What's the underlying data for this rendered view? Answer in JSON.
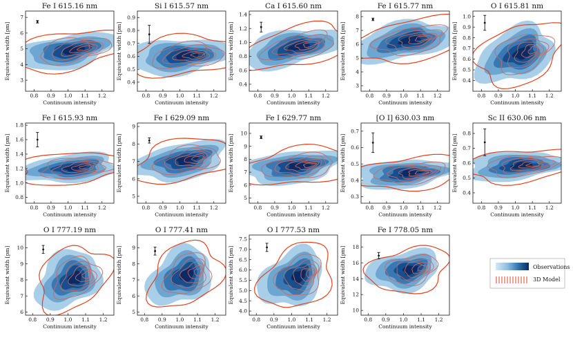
{
  "figure": {
    "legend": {
      "observations_label": "Observations",
      "model_label": "3D Model",
      "obs_gradient": [
        "#d6e8f6",
        "#0b2a63"
      ],
      "model_color": "#e8502a"
    },
    "colors": {
      "obs_levels": [
        "#a9cfe8",
        "#6ea6d2",
        "#3978b3",
        "#174e8e",
        "#0b2a63"
      ],
      "model_color": "#e0421e",
      "model_inner": "#c86a60"
    }
  },
  "chart_data": [
    {
      "type": "contour",
      "title": "Fe I 615.16 nm",
      "xlabel": "Continuum intensity",
      "ylabel": "Equivalent width [pm]",
      "xlim": [
        0.75,
        1.27
      ],
      "ylim": [
        2.3,
        7.4
      ],
      "xticks": [
        "0.8",
        "0.9",
        "1.0",
        "1.1",
        "1.2"
      ],
      "yticks": [
        "3",
        "4",
        "5",
        "6",
        "7"
      ],
      "center": [
        0.99,
        4.85
      ],
      "spread": [
        0.13,
        0.55
      ],
      "slope": 0.6,
      "error_bar": {
        "x": 0.82,
        "y": 6.72,
        "err": 0.08
      }
    },
    {
      "type": "contour",
      "title": "Si I 615.57 nm",
      "xlabel": "Continuum intensity",
      "ylabel": "Equivalent width [pm]",
      "xlim": [
        0.75,
        1.27
      ],
      "ylim": [
        0.33,
        0.95
      ],
      "xticks": [
        "0.8",
        "0.9",
        "1.0",
        "1.1",
        "1.2"
      ],
      "yticks": [
        "0.4",
        "0.5",
        "0.6",
        "0.7",
        "0.8",
        "0.9"
      ],
      "center": [
        1.0,
        0.6
      ],
      "spread": [
        0.13,
        0.07
      ],
      "slope": 0.3,
      "error_bar": {
        "x": 0.82,
        "y": 0.77,
        "err": 0.07
      }
    },
    {
      "type": "contour",
      "title": "Ca I 615.60 nm",
      "xlabel": "Continuum intensity",
      "ylabel": "Equivalent width [pm]",
      "xlim": [
        0.75,
        1.27
      ],
      "ylim": [
        0.3,
        1.45
      ],
      "xticks": [
        "0.8",
        "0.9",
        "1.0",
        "1.1",
        "1.2"
      ],
      "yticks": [
        "0.4",
        "0.6",
        "0.8",
        "1.0",
        "1.2",
        "1.4"
      ],
      "center": [
        1.0,
        0.92
      ],
      "spread": [
        0.13,
        0.13
      ],
      "slope": 0.7,
      "error_bar": {
        "x": 0.82,
        "y": 1.22,
        "err": 0.07
      }
    },
    {
      "type": "contour",
      "title": "Fe I 615.77 nm",
      "xlabel": "Continuum intensity",
      "ylabel": "Equivalent width [pm]",
      "xlim": [
        0.75,
        1.27
      ],
      "ylim": [
        2.6,
        8.4
      ],
      "xticks": [
        "0.8",
        "0.9",
        "1.0",
        "1.1",
        "1.2"
      ],
      "yticks": [
        "3",
        "4",
        "5",
        "6",
        "7",
        "8"
      ],
      "center": [
        1.0,
        6.2
      ],
      "spread": [
        0.13,
        0.7
      ],
      "slope": 0.6,
      "error_bar": {
        "x": 0.82,
        "y": 7.8,
        "err": 0.09
      }
    },
    {
      "type": "contour",
      "title": "O I 615.81 nm",
      "xlabel": "Continuum intensity",
      "ylabel": "Equivalent width [pm]",
      "xlim": [
        0.75,
        1.27
      ],
      "ylim": [
        0.3,
        1.05
      ],
      "xticks": [
        "0.8",
        "0.9",
        "1.0",
        "1.1",
        "1.2"
      ],
      "yticks": [
        "0.4",
        "0.5",
        "0.6",
        "0.7",
        "0.8",
        "0.9",
        "1.0"
      ],
      "center": [
        1.0,
        0.64
      ],
      "spread": [
        0.1,
        0.13
      ],
      "slope": 0.95,
      "error_bar": {
        "x": 0.82,
        "y": 0.94,
        "err": 0.07
      }
    },
    {
      "type": "contour",
      "title": "Fe I 615.93 nm",
      "xlabel": "Continuum intensity",
      "ylabel": "Equivalent width [pm]",
      "xlim": [
        0.75,
        1.27
      ],
      "ylim": [
        0.72,
        1.83
      ],
      "xticks": [
        "0.8",
        "0.9",
        "1.0",
        "1.1",
        "1.2"
      ],
      "yticks": [
        "0.8",
        "1.0",
        "1.2",
        "1.4",
        "1.6",
        "1.8"
      ],
      "center": [
        1.0,
        1.2
      ],
      "spread": [
        0.13,
        0.1
      ],
      "slope": 0.3,
      "error_bar": {
        "x": 0.82,
        "y": 1.6,
        "err": 0.1
      }
    },
    {
      "type": "contour",
      "title": "Fe I 629.09 nm",
      "xlabel": "Continuum intensity",
      "ylabel": "Equivalent width [pm]",
      "xlim": [
        0.75,
        1.27
      ],
      "ylim": [
        4.6,
        9.2
      ],
      "xticks": [
        "0.8",
        "0.9",
        "1.0",
        "1.1",
        "1.2"
      ],
      "yticks": [
        "5",
        "6",
        "7",
        "8",
        "9"
      ],
      "center": [
        1.0,
        7.0
      ],
      "spread": [
        0.12,
        0.55
      ],
      "slope": 0.6,
      "error_bar": {
        "x": 0.82,
        "y": 8.2,
        "err": 0.15
      }
    },
    {
      "type": "contour",
      "title": "Fe I 629.77 nm",
      "xlabel": "Continuum intensity",
      "ylabel": "Equivalent width [pm]",
      "xlim": [
        0.75,
        1.27
      ],
      "ylim": [
        4.6,
        10.8
      ],
      "xticks": [
        "0.8",
        "0.9",
        "1.0",
        "1.1",
        "1.2"
      ],
      "yticks": [
        "5",
        "6",
        "7",
        "8",
        "9",
        "10"
      ],
      "center": [
        1.0,
        7.4
      ],
      "spread": [
        0.13,
        0.65
      ],
      "slope": 0.4,
      "error_bar": {
        "x": 0.82,
        "y": 9.7,
        "err": 0.1
      }
    },
    {
      "type": "contour",
      "title": "[O I] 630.03 nm",
      "xlabel": "Continuum intensity",
      "ylabel": "Equivalent width [pm]",
      "xlim": [
        0.75,
        1.27
      ],
      "ylim": [
        0.26,
        0.75
      ],
      "xticks": [
        "0.8",
        "0.9",
        "1.0",
        "1.1",
        "1.2"
      ],
      "yticks": [
        "0.3",
        "0.4",
        "0.5",
        "0.6",
        "0.7"
      ],
      "center": [
        1.0,
        0.44
      ],
      "spread": [
        0.13,
        0.045
      ],
      "slope": 0.3,
      "error_bar": {
        "x": 0.82,
        "y": 0.63,
        "err": 0.06
      }
    },
    {
      "type": "contour",
      "title": "Sc II 630.06 nm",
      "xlabel": "Continuum intensity",
      "ylabel": "Equivalent width [pm]",
      "xlim": [
        0.75,
        1.27
      ],
      "ylim": [
        0.33,
        0.87
      ],
      "xticks": [
        "0.8",
        "0.9",
        "1.0",
        "1.1",
        "1.2"
      ],
      "yticks": [
        "0.4",
        "0.5",
        "0.6",
        "0.7",
        "0.8"
      ],
      "center": [
        1.0,
        0.58
      ],
      "spread": [
        0.13,
        0.05
      ],
      "slope": 0.3,
      "error_bar": {
        "x": 0.82,
        "y": 0.74,
        "err": 0.09
      }
    },
    {
      "type": "contour",
      "title": "O I 777.19 nm",
      "xlabel": "Continuum intensity",
      "ylabel": "Equivalent width [pm]",
      "xlim": [
        0.76,
        1.26
      ],
      "ylim": [
        5.8,
        10.8
      ],
      "xticks": [
        "0.8",
        "0.9",
        "1.0",
        "1.1",
        "1.2"
      ],
      "yticks": [
        "6",
        "7",
        "8",
        "9",
        "10"
      ],
      "center": [
        1.0,
        8.0
      ],
      "spread": [
        0.08,
        0.9
      ],
      "slope": 0.97,
      "error_bar": {
        "x": 0.86,
        "y": 9.9,
        "err": 0.25
      }
    },
    {
      "type": "contour",
      "title": "O I 777.41 nm",
      "xlabel": "Continuum intensity",
      "ylabel": "Equivalent width [pm]",
      "xlim": [
        0.76,
        1.26
      ],
      "ylim": [
        4.8,
        9.8
      ],
      "xticks": [
        "0.8",
        "0.9",
        "1.0",
        "1.1",
        "1.2"
      ],
      "yticks": [
        "5",
        "6",
        "7",
        "8",
        "9"
      ],
      "center": [
        1.0,
        7.2
      ],
      "spread": [
        0.08,
        0.9
      ],
      "slope": 0.97,
      "error_bar": {
        "x": 0.86,
        "y": 8.8,
        "err": 0.25
      }
    },
    {
      "type": "contour",
      "title": "O I 777.53 nm",
      "xlabel": "Continuum intensity",
      "ylabel": "Equivalent width [pm]",
      "xlim": [
        0.76,
        1.26
      ],
      "ylim": [
        3.8,
        7.7
      ],
      "xticks": [
        "0.8",
        "0.9",
        "1.0",
        "1.1",
        "1.2"
      ],
      "yticks": [
        "4.0",
        "4.5",
        "5.0",
        "5.5",
        "6.0",
        "6.5",
        "7.0",
        "7.5"
      ],
      "center": [
        1.0,
        5.6
      ],
      "spread": [
        0.08,
        0.7
      ],
      "slope": 0.97,
      "error_bar": {
        "x": 0.86,
        "y": 7.1,
        "err": 0.2
      }
    },
    {
      "type": "contour",
      "title": "Fe I 778.05 nm",
      "xlabel": "Continuum intensity",
      "ylabel": "Equivalent width [pm]",
      "xlim": [
        0.76,
        1.26
      ],
      "ylim": [
        9.4,
        19.5
      ],
      "xticks": [
        "0.8",
        "0.9",
        "1.0",
        "1.1",
        "1.2"
      ],
      "yticks": [
        "10",
        "12",
        "14",
        "16",
        "18"
      ],
      "center": [
        1.0,
        15.0
      ],
      "spread": [
        0.09,
        1.3
      ],
      "slope": 0.5,
      "error_bar": {
        "x": 0.86,
        "y": 16.9,
        "err": 0.4
      }
    }
  ]
}
